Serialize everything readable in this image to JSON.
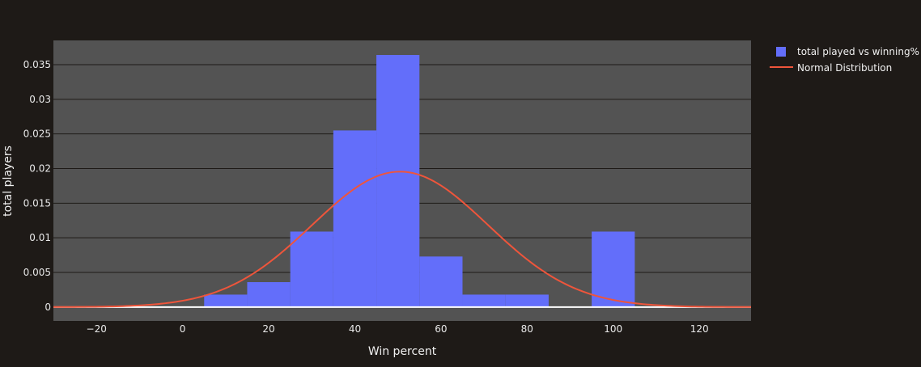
{
  "colors": {
    "page_background": "#1e1a17",
    "plot_background": "#535353",
    "gridline": "#1e1a17",
    "histogram_bar": "#636efa",
    "normal_curve": "#ef553b",
    "text": "#e8e8e8"
  },
  "chart_data": {
    "type": "bar",
    "xlabel": "Win percent",
    "ylabel": "total players",
    "xlim": [
      -30,
      132
    ],
    "ylim": [
      -0.002,
      0.0385
    ],
    "grid": true,
    "legend_placement": "top-right, outside plot",
    "x_ticks": [
      -20,
      0,
      20,
      40,
      60,
      80,
      100,
      120
    ],
    "x_tick_labels": [
      "−20",
      "0",
      "20",
      "40",
      "60",
      "80",
      "100",
      "120"
    ],
    "y_ticks": [
      0,
      0.005,
      0.01,
      0.015,
      0.02,
      0.025,
      0.03,
      0.035
    ],
    "y_tick_labels": [
      "0",
      "0.005",
      "0.01",
      "0.015",
      "0.02",
      "0.025",
      "0.03",
      "0.035"
    ],
    "series": [
      {
        "name": "total played vs winning%",
        "type": "histogram",
        "bins": [
          {
            "start": 5,
            "end": 15,
            "value": 0.0018
          },
          {
            "start": 15,
            "end": 25,
            "value": 0.0036
          },
          {
            "start": 25,
            "end": 35,
            "value": 0.0109
          },
          {
            "start": 35,
            "end": 45,
            "value": 0.0255
          },
          {
            "start": 45,
            "end": 55,
            "value": 0.0364
          },
          {
            "start": 55,
            "end": 65,
            "value": 0.0073
          },
          {
            "start": 65,
            "end": 75,
            "value": 0.0018
          },
          {
            "start": 75,
            "end": 85,
            "value": 0.0018
          },
          {
            "start": 85,
            "end": 95,
            "value": 0
          },
          {
            "start": 95,
            "end": 105,
            "value": 0.0109
          }
        ]
      },
      {
        "name": "Normal Distribution",
        "type": "line",
        "mean": 50.5,
        "std": 20.4,
        "x_range": [
          -30,
          132
        ]
      }
    ]
  }
}
